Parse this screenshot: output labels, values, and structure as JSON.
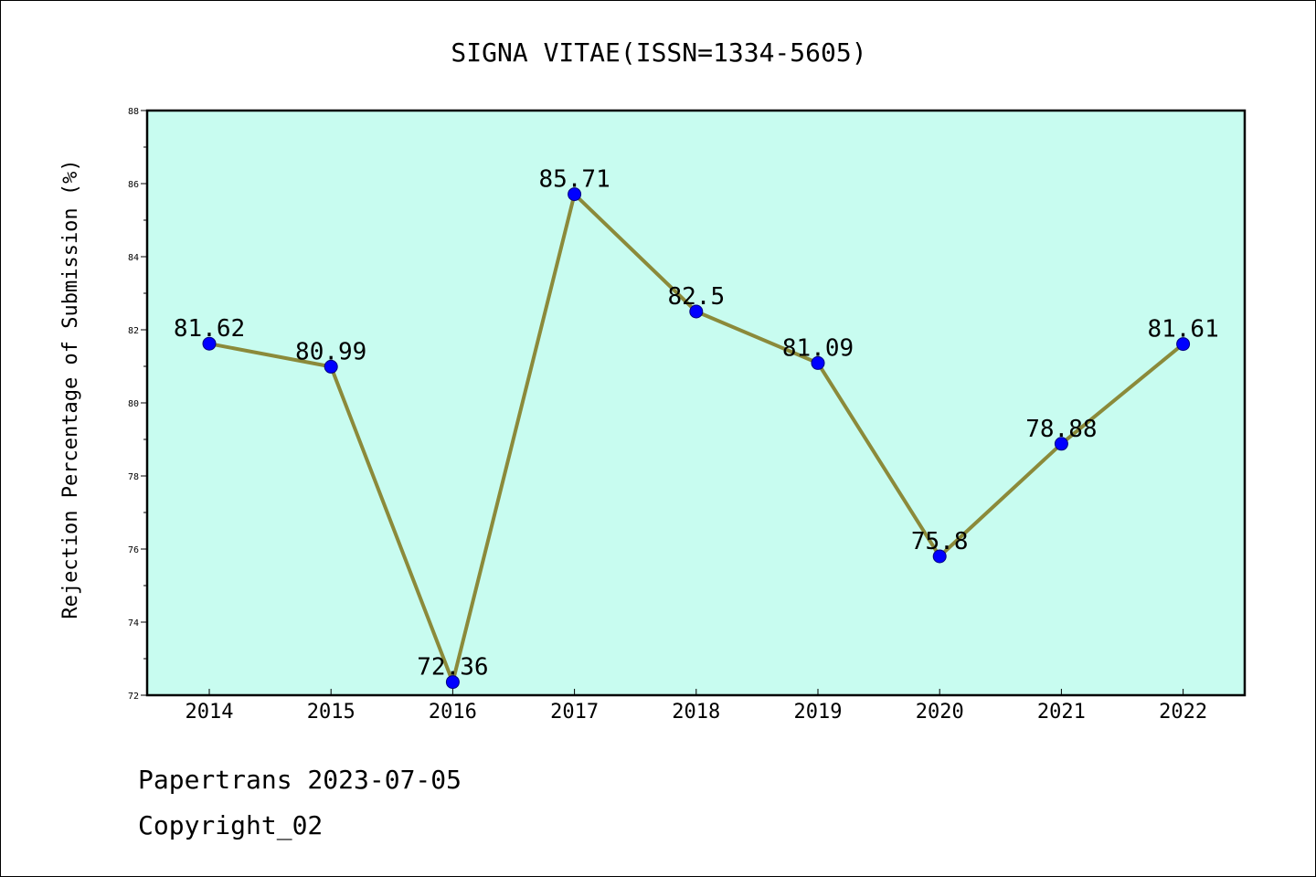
{
  "colors": {
    "plot_background": "#c8fcf0",
    "line": "#8b8a3a",
    "marker": "#0000ff",
    "marker_edge": "#000080",
    "frame": "#000000"
  },
  "chart_data": {
    "type": "line",
    "title": "SIGNA VITAE(ISSN=1334-5605)",
    "xlabel": "",
    "ylabel": "Rejection Percentage of Submission (%)",
    "x": [
      "2014",
      "2015",
      "2016",
      "2017",
      "2018",
      "2019",
      "2020",
      "2021",
      "2022"
    ],
    "values": [
      81.62,
      80.99,
      72.36,
      85.71,
      82.5,
      81.09,
      75.8,
      78.88,
      81.61
    ],
    "data_labels": [
      "81.62",
      "80.99",
      "72.36",
      "85.71",
      "82.5",
      "81.09",
      "75.8",
      "78.88",
      "81.61"
    ],
    "ylim": [
      72,
      88
    ],
    "yticks": [
      "72",
      "74",
      "76",
      "78",
      "80",
      "82",
      "84",
      "86",
      "88"
    ],
    "grid": false,
    "legend": "none"
  },
  "footer": {
    "source": "Papertrans 2023-07-05",
    "copyright": "Copyright_02"
  }
}
